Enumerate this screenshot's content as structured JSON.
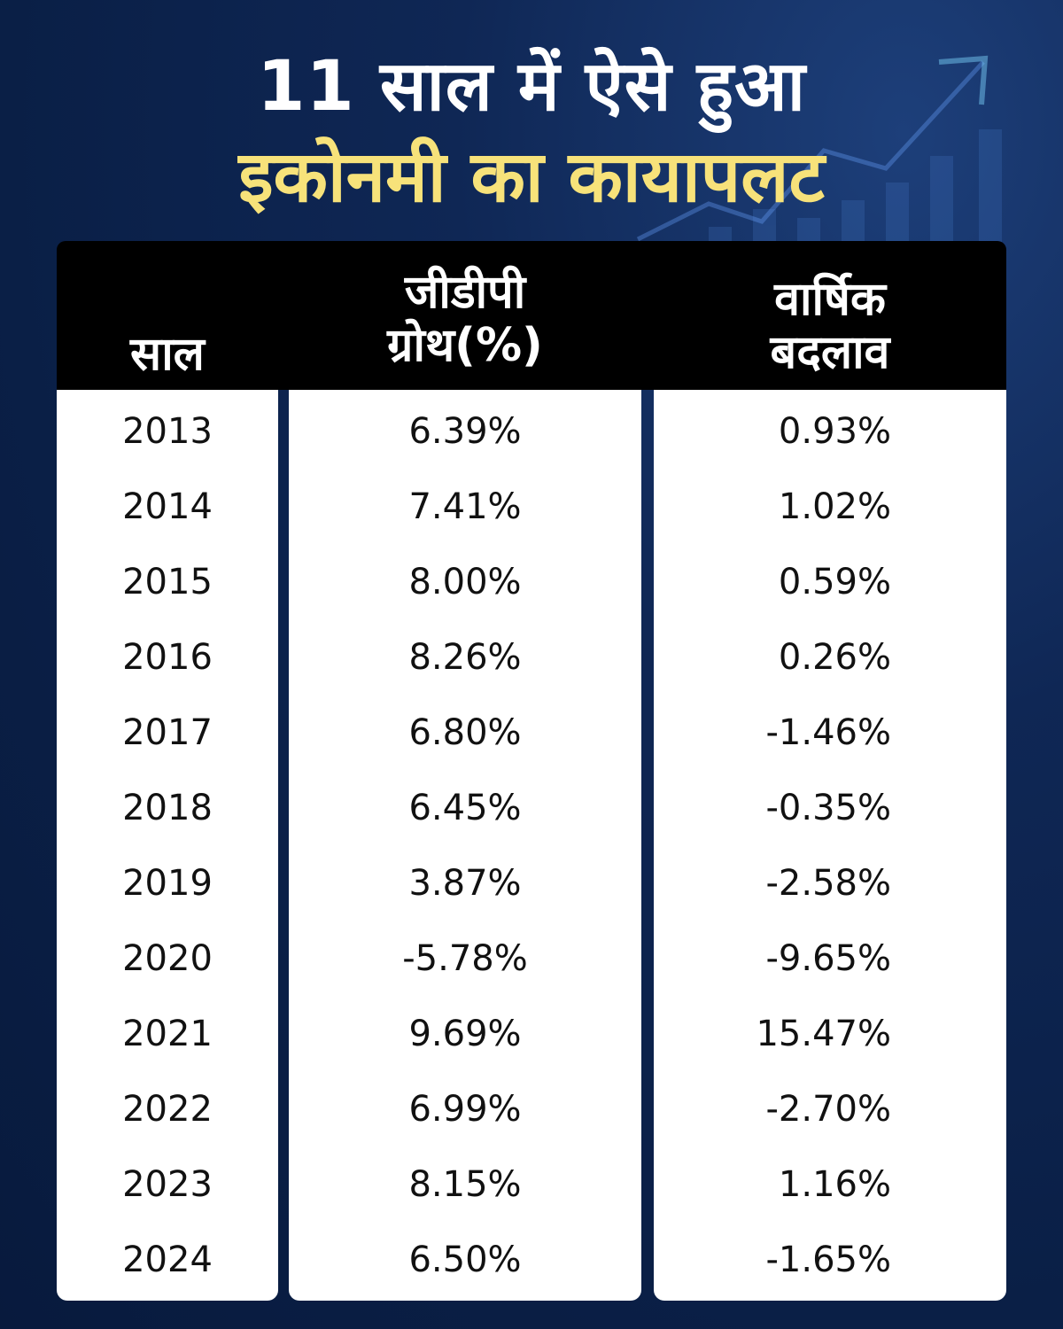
{
  "title": {
    "line1": "11 साल में ऐसे हुआ",
    "line2": "इकोनमी का कायापलट"
  },
  "colors": {
    "background": "#0a1f46",
    "title_primary": "#ffffff",
    "title_accent": "#f7e27a",
    "header_bg": "#000000",
    "column_bg": "#ffffff"
  },
  "table": {
    "headers": {
      "year": "साल",
      "gdp_line1": "जीडीपी",
      "gdp_line2": "ग्रोथ(%)",
      "change_line1": "वार्षिक",
      "change_line2": "बदलाव"
    },
    "rows": [
      {
        "year": "2013",
        "gdp": "6.39%",
        "change": "0.93%"
      },
      {
        "year": "2014",
        "gdp": "7.41%",
        "change": "1.02%"
      },
      {
        "year": "2015",
        "gdp": "8.00%",
        "change": "0.59%"
      },
      {
        "year": "2016",
        "gdp": "8.26%",
        "change": "0.26%"
      },
      {
        "year": "2017",
        "gdp": "6.80%",
        "change": "-1.46%"
      },
      {
        "year": "2018",
        "gdp": "6.45%",
        "change": "-0.35%"
      },
      {
        "year": "2019",
        "gdp": "3.87%",
        "change": "-2.58%"
      },
      {
        "year": "2020",
        "gdp": "-5.78%",
        "change": "-9.65%"
      },
      {
        "year": "2021",
        "gdp": "9.69%",
        "change": "15.47%"
      },
      {
        "year": "2022",
        "gdp": "6.99%",
        "change": "-2.70%"
      },
      {
        "year": "2023",
        "gdp": "8.15%",
        "change": "1.16%"
      },
      {
        "year": "2024",
        "gdp": "6.50%",
        "change": "-1.65%"
      }
    ]
  }
}
